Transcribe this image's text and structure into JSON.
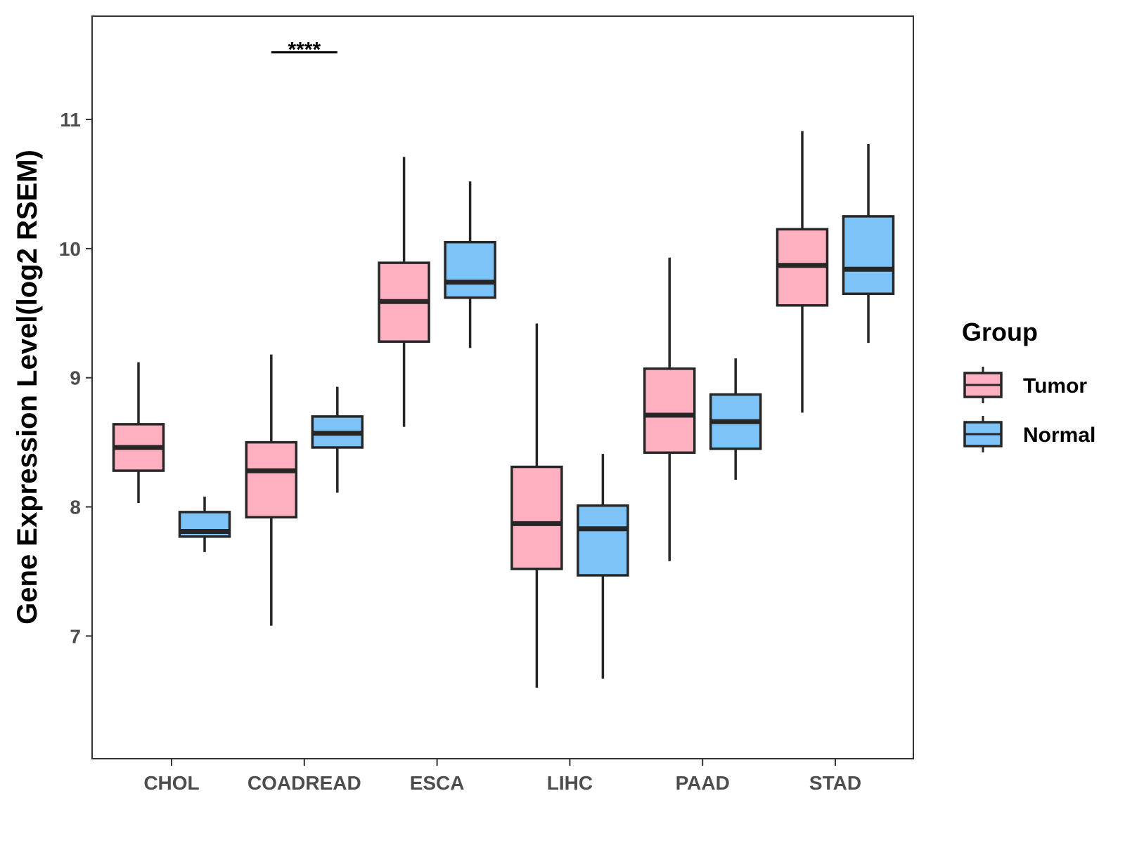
{
  "chart_data": {
    "type": "boxplot",
    "title": "",
    "xlabel": "",
    "ylabel": "Gene Expression Level(log2 RSEM)",
    "ylim": [
      6.05,
      11.8
    ],
    "yticks": [
      7,
      8,
      9,
      10,
      11
    ],
    "categories": [
      "CHOL",
      "COADREAD",
      "ESCA",
      "LIHC",
      "PAAD",
      "STAD"
    ],
    "legend": {
      "title": "Group",
      "position": "right"
    },
    "series": [
      {
        "name": "Tumor",
        "color": "#ffb1c1",
        "boxes": [
          {
            "whisker_low": 8.03,
            "q1": 8.28,
            "median": 8.46,
            "q3": 8.64,
            "whisker_high": 9.12
          },
          {
            "whisker_low": 7.08,
            "q1": 7.92,
            "median": 8.28,
            "q3": 8.5,
            "whisker_high": 9.18
          },
          {
            "whisker_low": 8.62,
            "q1": 9.28,
            "median": 9.59,
            "q3": 9.89,
            "whisker_high": 10.71
          },
          {
            "whisker_low": 6.6,
            "q1": 7.52,
            "median": 7.87,
            "q3": 8.31,
            "whisker_high": 9.42
          },
          {
            "whisker_low": 7.58,
            "q1": 8.42,
            "median": 8.71,
            "q3": 9.07,
            "whisker_high": 9.93
          },
          {
            "whisker_low": 8.73,
            "q1": 9.56,
            "median": 9.87,
            "q3": 10.15,
            "whisker_high": 10.91
          }
        ]
      },
      {
        "name": "Normal",
        "color": "#7dc3f8",
        "boxes": [
          {
            "whisker_low": 7.65,
            "q1": 7.77,
            "median": 7.81,
            "q3": 7.96,
            "whisker_high": 8.08
          },
          {
            "whisker_low": 8.11,
            "q1": 8.46,
            "median": 8.57,
            "q3": 8.7,
            "whisker_high": 8.93
          },
          {
            "whisker_low": 9.23,
            "q1": 9.62,
            "median": 9.74,
            "q3": 10.05,
            "whisker_high": 10.52
          },
          {
            "whisker_low": 6.67,
            "q1": 7.47,
            "median": 7.83,
            "q3": 8.01,
            "whisker_high": 8.41
          },
          {
            "whisker_low": 8.21,
            "q1": 8.45,
            "median": 8.66,
            "q3": 8.87,
            "whisker_high": 9.15
          },
          {
            "whisker_low": 9.27,
            "q1": 9.65,
            "median": 9.84,
            "q3": 10.25,
            "whisker_high": 10.81
          }
        ]
      }
    ],
    "annotations": [
      {
        "category": "COADREAD",
        "text": "****",
        "y": 11.52
      }
    ]
  }
}
